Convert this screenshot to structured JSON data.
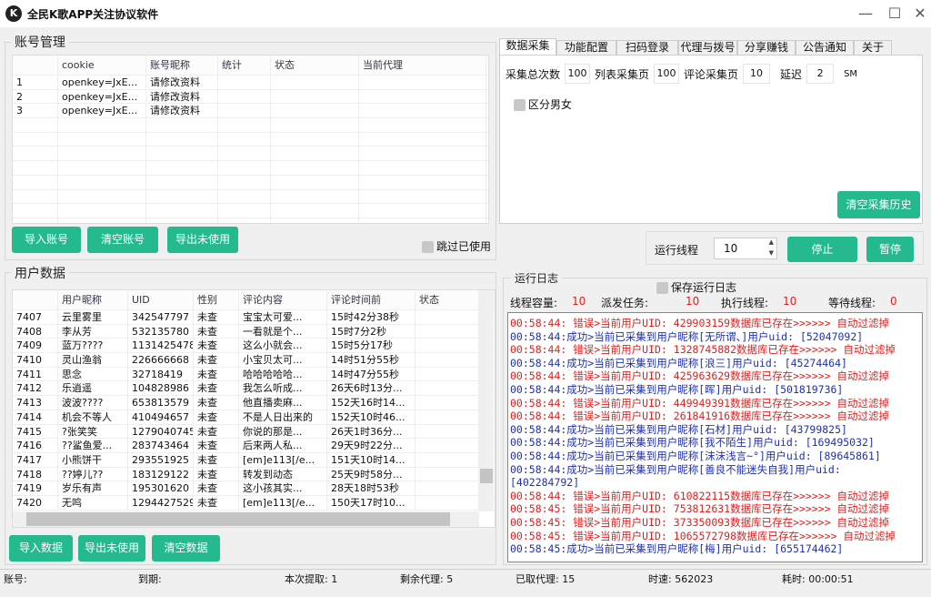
{
  "window": {
    "title": "全民K歌APP关注协议软件",
    "min": "—",
    "max": "☐",
    "close": "✕"
  },
  "accounts": {
    "group_label": "账号管理",
    "columns": [
      "",
      "cookie",
      "账号昵称",
      "统计",
      "状态",
      "当前代理"
    ],
    "rows": [
      [
        "1",
        "openkey=JxE...",
        "请修改资料",
        "",
        "",
        ""
      ],
      [
        "2",
        "openkey=JxE...",
        "请修改资料",
        "",
        "",
        ""
      ],
      [
        "3",
        "openkey=JxE...",
        "请修改资料",
        "",
        "",
        ""
      ]
    ],
    "import_btn": "导入账号",
    "clear_btn": "清空账号",
    "export_btn": "导出未使用",
    "skip_used": "跳过已使用"
  },
  "tabs": [
    "数据采集",
    "功能配置",
    "扫码登录",
    "代理与拨号",
    "分享赚钱",
    "公告通知",
    "关于"
  ],
  "collect": {
    "total_label": "采集总次数",
    "total": "100",
    "list_label": "列表采集页",
    "list": "100",
    "comment_label": "评论采集页",
    "comment": "10",
    "delay_label": "延迟",
    "delay": "2",
    "delay_unit": "SM",
    "gender_label": "区分男女",
    "clear_history": "清空采集历史"
  },
  "threads": {
    "label": "运行线程",
    "value": "10",
    "stop": "停止",
    "pause": "暂停"
  },
  "users": {
    "group_label": "用户数据",
    "columns": [
      "",
      "用户昵称",
      "UID",
      "性别",
      "评论内容",
      "评论时间前",
      "状态"
    ],
    "rows": [
      [
        "7407",
        "云里雾里",
        "342547797",
        "未查",
        "宝宝太可爱...",
        "15时42分38秒",
        ""
      ],
      [
        "7408",
        "李从芳",
        "532135780",
        "未查",
        "一看就是个...",
        "15时7分2秒",
        ""
      ],
      [
        "7409",
        "蓝万????",
        "1131425478",
        "未查",
        "这么小就会...",
        "15时5分17秒",
        ""
      ],
      [
        "7410",
        "灵山渔翁",
        "226666668",
        "未查",
        "小宝贝太可...",
        "14时51分55秒",
        ""
      ],
      [
        "7411",
        "思念",
        "32718419",
        "未查",
        "哈哈哈哈哈...",
        "14时47分55秒",
        ""
      ],
      [
        "7412",
        "乐逍遥",
        "104828986",
        "未查",
        "我怎么听成...",
        "26天6时13分...",
        ""
      ],
      [
        "7413",
        "波波????",
        "653813579",
        "未查",
        "他直播卖麻...",
        "152天16时14...",
        ""
      ],
      [
        "7414",
        "机会不等人",
        "410494657",
        "未查",
        "不是人日出来的",
        "152天10时46...",
        ""
      ],
      [
        "7415",
        "?张笑笑",
        "1279040745",
        "未查",
        "你说的那是...",
        "26天1时36分...",
        ""
      ],
      [
        "7416",
        "??鲨鱼爱...",
        "283743464",
        "未查",
        "后来两人私...",
        "29天9时22分...",
        ""
      ],
      [
        "7417",
        "小熊饼干",
        "293551925",
        "未查",
        "[em]e113[/e...",
        "151天10时14...",
        ""
      ],
      [
        "7418",
        "??婷儿??",
        "183129122",
        "未查",
        "转发到动态",
        "25天9时58分...",
        ""
      ],
      [
        "7419",
        "岁乐有声",
        "195301620",
        "未查",
        "这小孩其实...",
        "28天18时53秒",
        ""
      ],
      [
        "7420",
        "无鸣",
        "1294427529",
        "未查",
        "[em]e113[/e...",
        "150天17时10...",
        ""
      ]
    ],
    "import_btn": "导入数据",
    "export_btn": "导出未使用",
    "clear_btn": "清空数据"
  },
  "log": {
    "group_label": "运行日志",
    "save_label": "保存运行日志",
    "stats": [
      {
        "label": "线程容量:",
        "value": "10"
      },
      {
        "label": "派发任务:",
        "value": "10"
      },
      {
        "label": "执行线程:",
        "value": "10"
      },
      {
        "label": "等待线程:",
        "value": "0"
      }
    ],
    "lines": [
      {
        "type": "err",
        "text": "00:58:44:  错误>当前用户UID: 429903159数据库已存在>>>>>>   自动过滤掉"
      },
      {
        "type": "ok",
        "text": "00:58:44:成功>当前已采集到用户昵称[无所谓、]用户uid: [52047092]"
      },
      {
        "type": "err",
        "text": "00:58:44:  错误>当前用户UID: 1328745882数据库已存在>>>>>>   自动过滤掉"
      },
      {
        "type": "ok",
        "text": "00:58:44:成功>当前已采集到用户昵称[浪三]用户uid: [45274464]"
      },
      {
        "type": "err",
        "text": "00:58:44:  错误>当前用户UID: 425963629数据库已存在>>>>>>   自动过滤掉"
      },
      {
        "type": "ok",
        "text": "00:58:44:成功>当前已采集到用户昵称[晖]用户uid: [501819736]"
      },
      {
        "type": "err",
        "text": "00:58:44:  错误>当前用户UID: 449949391数据库已存在>>>>>>   自动过滤掉"
      },
      {
        "type": "err",
        "text": "00:58:44:  错误>当前用户UID: 261841916数据库已存在>>>>>>   自动过滤掉"
      },
      {
        "type": "ok",
        "text": "00:58:44:成功>当前已采集到用户昵称[石材]用户uid: [43799825]"
      },
      {
        "type": "ok",
        "text": "00:58:44:成功>当前已采集到用户昵称[我不陌生]用户uid: [169495032]"
      },
      {
        "type": "ok",
        "text": "00:58:44:成功>当前已采集到用户昵称[沫沫浅言~°]用户uid: [89645861]"
      },
      {
        "type": "ok",
        "text": "00:58:44:成功>当前已采集到用户昵称[善良不能迷失自我]用户uid:"
      },
      {
        "type": "ok",
        "text": "[402284792]"
      },
      {
        "type": "err",
        "text": "00:58:44:  错误>当前用户UID: 610822115数据库已存在>>>>>>   自动过滤掉"
      },
      {
        "type": "err",
        "text": "00:58:45:  错误>当前用户UID: 753812631数据库已存在>>>>>>   自动过滤掉"
      },
      {
        "type": "err",
        "text": "00:58:45:  错误>当前用户UID: 373350093数据库已存在>>>>>>   自动过滤掉"
      },
      {
        "type": "err",
        "text": "00:58:45:  错误>当前用户UID: 1065572798数据库已存在>>>>>>   自动过滤掉"
      },
      {
        "type": "ok",
        "text": "00:58:45:成功>当前已采集到用户昵称[梅]用户uid: [655174462]"
      }
    ]
  },
  "status": {
    "account": "账号:",
    "expire": "到期:",
    "extract": "本次提取: 1",
    "remaining": "剩余代理: 5",
    "taken": "已取代理: 15",
    "speed": "时速: 562023",
    "elapsed": "耗时: 00:00:51"
  }
}
